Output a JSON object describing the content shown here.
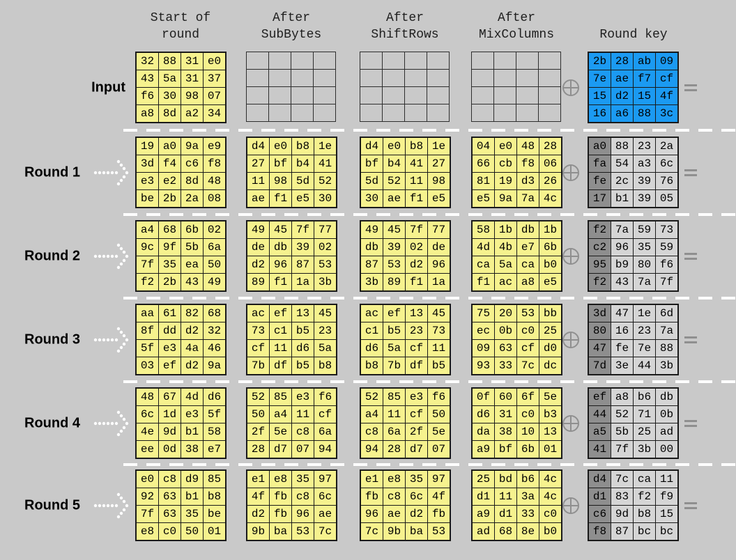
{
  "columns": [
    {
      "line1": "Start of",
      "line2": "round"
    },
    {
      "line1": "After",
      "line2": "SubBytes"
    },
    {
      "line1": "After",
      "line2": "ShiftRows"
    },
    {
      "line1": "After",
      "line2": "MixColumns"
    },
    {
      "line1": "",
      "line2": "Round key"
    }
  ],
  "symbols": {
    "xor": "⊕",
    "equals": "="
  },
  "icons": {
    "arrow": "dotted-right-arrow",
    "xor": "circled-plus",
    "equals": "equals-sign"
  },
  "colors": {
    "background": "#c9c9c9",
    "state_fill": "#f6f28e",
    "key_input_fill": "#1b9af2",
    "key_fill": "#d5d5d5",
    "key_first_col_fill": "#8e8e8e"
  },
  "rows": [
    {
      "label": "Input",
      "arrow": false,
      "key_style": "blue",
      "start": [
        [
          "32",
          "88",
          "31",
          "e0"
        ],
        [
          "43",
          "5a",
          "31",
          "37"
        ],
        [
          "f6",
          "30",
          "98",
          "07"
        ],
        [
          "a8",
          "8d",
          "a2",
          "34"
        ]
      ],
      "subbytes": null,
      "shiftrows": null,
      "mixcolumns": null,
      "key": [
        [
          "2b",
          "28",
          "ab",
          "09"
        ],
        [
          "7e",
          "ae",
          "f7",
          "cf"
        ],
        [
          "15",
          "d2",
          "15",
          "4f"
        ],
        [
          "16",
          "a6",
          "88",
          "3c"
        ]
      ]
    },
    {
      "label": "Round 1",
      "arrow": true,
      "key_style": "gray",
      "start": [
        [
          "19",
          "a0",
          "9a",
          "e9"
        ],
        [
          "3d",
          "f4",
          "c6",
          "f8"
        ],
        [
          "e3",
          "e2",
          "8d",
          "48"
        ],
        [
          "be",
          "2b",
          "2a",
          "08"
        ]
      ],
      "subbytes": [
        [
          "d4",
          "e0",
          "b8",
          "1e"
        ],
        [
          "27",
          "bf",
          "b4",
          "41"
        ],
        [
          "11",
          "98",
          "5d",
          "52"
        ],
        [
          "ae",
          "f1",
          "e5",
          "30"
        ]
      ],
      "shiftrows": [
        [
          "d4",
          "e0",
          "b8",
          "1e"
        ],
        [
          "bf",
          "b4",
          "41",
          "27"
        ],
        [
          "5d",
          "52",
          "11",
          "98"
        ],
        [
          "30",
          "ae",
          "f1",
          "e5"
        ]
      ],
      "mixcolumns": [
        [
          "04",
          "e0",
          "48",
          "28"
        ],
        [
          "66",
          "cb",
          "f8",
          "06"
        ],
        [
          "81",
          "19",
          "d3",
          "26"
        ],
        [
          "e5",
          "9a",
          "7a",
          "4c"
        ]
      ],
      "key": [
        [
          "a0",
          "88",
          "23",
          "2a"
        ],
        [
          "fa",
          "54",
          "a3",
          "6c"
        ],
        [
          "fe",
          "2c",
          "39",
          "76"
        ],
        [
          "17",
          "b1",
          "39",
          "05"
        ]
      ]
    },
    {
      "label": "Round 2",
      "arrow": true,
      "key_style": "gray",
      "start": [
        [
          "a4",
          "68",
          "6b",
          "02"
        ],
        [
          "9c",
          "9f",
          "5b",
          "6a"
        ],
        [
          "7f",
          "35",
          "ea",
          "50"
        ],
        [
          "f2",
          "2b",
          "43",
          "49"
        ]
      ],
      "subbytes": [
        [
          "49",
          "45",
          "7f",
          "77"
        ],
        [
          "de",
          "db",
          "39",
          "02"
        ],
        [
          "d2",
          "96",
          "87",
          "53"
        ],
        [
          "89",
          "f1",
          "1a",
          "3b"
        ]
      ],
      "shiftrows": [
        [
          "49",
          "45",
          "7f",
          "77"
        ],
        [
          "db",
          "39",
          "02",
          "de"
        ],
        [
          "87",
          "53",
          "d2",
          "96"
        ],
        [
          "3b",
          "89",
          "f1",
          "1a"
        ]
      ],
      "mixcolumns": [
        [
          "58",
          "1b",
          "db",
          "1b"
        ],
        [
          "4d",
          "4b",
          "e7",
          "6b"
        ],
        [
          "ca",
          "5a",
          "ca",
          "b0"
        ],
        [
          "f1",
          "ac",
          "a8",
          "e5"
        ]
      ],
      "key": [
        [
          "f2",
          "7a",
          "59",
          "73"
        ],
        [
          "c2",
          "96",
          "35",
          "59"
        ],
        [
          "95",
          "b9",
          "80",
          "f6"
        ],
        [
          "f2",
          "43",
          "7a",
          "7f"
        ]
      ]
    },
    {
      "label": "Round 3",
      "arrow": true,
      "key_style": "gray",
      "start": [
        [
          "aa",
          "61",
          "82",
          "68"
        ],
        [
          "8f",
          "dd",
          "d2",
          "32"
        ],
        [
          "5f",
          "e3",
          "4a",
          "46"
        ],
        [
          "03",
          "ef",
          "d2",
          "9a"
        ]
      ],
      "subbytes": [
        [
          "ac",
          "ef",
          "13",
          "45"
        ],
        [
          "73",
          "c1",
          "b5",
          "23"
        ],
        [
          "cf",
          "11",
          "d6",
          "5a"
        ],
        [
          "7b",
          "df",
          "b5",
          "b8"
        ]
      ],
      "shiftrows": [
        [
          "ac",
          "ef",
          "13",
          "45"
        ],
        [
          "c1",
          "b5",
          "23",
          "73"
        ],
        [
          "d6",
          "5a",
          "cf",
          "11"
        ],
        [
          "b8",
          "7b",
          "df",
          "b5"
        ]
      ],
      "mixcolumns": [
        [
          "75",
          "20",
          "53",
          "bb"
        ],
        [
          "ec",
          "0b",
          "c0",
          "25"
        ],
        [
          "09",
          "63",
          "cf",
          "d0"
        ],
        [
          "93",
          "33",
          "7c",
          "dc"
        ]
      ],
      "key": [
        [
          "3d",
          "47",
          "1e",
          "6d"
        ],
        [
          "80",
          "16",
          "23",
          "7a"
        ],
        [
          "47",
          "fe",
          "7e",
          "88"
        ],
        [
          "7d",
          "3e",
          "44",
          "3b"
        ]
      ]
    },
    {
      "label": "Round 4",
      "arrow": true,
      "key_style": "gray",
      "start": [
        [
          "48",
          "67",
          "4d",
          "d6"
        ],
        [
          "6c",
          "1d",
          "e3",
          "5f"
        ],
        [
          "4e",
          "9d",
          "b1",
          "58"
        ],
        [
          "ee",
          "0d",
          "38",
          "e7"
        ]
      ],
      "subbytes": [
        [
          "52",
          "85",
          "e3",
          "f6"
        ],
        [
          "50",
          "a4",
          "11",
          "cf"
        ],
        [
          "2f",
          "5e",
          "c8",
          "6a"
        ],
        [
          "28",
          "d7",
          "07",
          "94"
        ]
      ],
      "shiftrows": [
        [
          "52",
          "85",
          "e3",
          "f6"
        ],
        [
          "a4",
          "11",
          "cf",
          "50"
        ],
        [
          "c8",
          "6a",
          "2f",
          "5e"
        ],
        [
          "94",
          "28",
          "d7",
          "07"
        ]
      ],
      "mixcolumns": [
        [
          "0f",
          "60",
          "6f",
          "5e"
        ],
        [
          "d6",
          "31",
          "c0",
          "b3"
        ],
        [
          "da",
          "38",
          "10",
          "13"
        ],
        [
          "a9",
          "bf",
          "6b",
          "01"
        ]
      ],
      "key": [
        [
          "ef",
          "a8",
          "b6",
          "db"
        ],
        [
          "44",
          "52",
          "71",
          "0b"
        ],
        [
          "a5",
          "5b",
          "25",
          "ad"
        ],
        [
          "41",
          "7f",
          "3b",
          "00"
        ]
      ]
    },
    {
      "label": "Round 5",
      "arrow": true,
      "key_style": "gray",
      "start": [
        [
          "e0",
          "c8",
          "d9",
          "85"
        ],
        [
          "92",
          "63",
          "b1",
          "b8"
        ],
        [
          "7f",
          "63",
          "35",
          "be"
        ],
        [
          "e8",
          "c0",
          "50",
          "01"
        ]
      ],
      "subbytes": [
        [
          "e1",
          "e8",
          "35",
          "97"
        ],
        [
          "4f",
          "fb",
          "c8",
          "6c"
        ],
        [
          "d2",
          "fb",
          "96",
          "ae"
        ],
        [
          "9b",
          "ba",
          "53",
          "7c"
        ]
      ],
      "shiftrows": [
        [
          "e1",
          "e8",
          "35",
          "97"
        ],
        [
          "fb",
          "c8",
          "6c",
          "4f"
        ],
        [
          "96",
          "ae",
          "d2",
          "fb"
        ],
        [
          "7c",
          "9b",
          "ba",
          "53"
        ]
      ],
      "mixcolumns": [
        [
          "25",
          "bd",
          "b6",
          "4c"
        ],
        [
          "d1",
          "11",
          "3a",
          "4c"
        ],
        [
          "a9",
          "d1",
          "33",
          "c0"
        ],
        [
          "ad",
          "68",
          "8e",
          "b0"
        ]
      ],
      "key": [
        [
          "d4",
          "7c",
          "ca",
          "11"
        ],
        [
          "d1",
          "83",
          "f2",
          "f9"
        ],
        [
          "c6",
          "9d",
          "b8",
          "15"
        ],
        [
          "f8",
          "87",
          "bc",
          "bc"
        ]
      ]
    }
  ]
}
